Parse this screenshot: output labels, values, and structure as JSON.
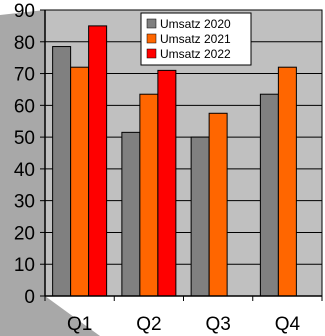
{
  "chart_data": {
    "type": "bar",
    "categories": [
      "Q1",
      "Q2",
      "Q3",
      "Q4"
    ],
    "series": [
      {
        "name": "Umsatz 2020",
        "values": [
          78.5,
          51.5,
          50,
          63.5
        ],
        "color": "#808080"
      },
      {
        "name": "Umsatz 2021",
        "values": [
          72,
          63.5,
          57.5,
          72
        ],
        "color": "#ff6600"
      },
      {
        "name": "Umsatz 2022",
        "values": [
          85,
          71,
          null,
          null
        ],
        "color": "#ff0000"
      }
    ],
    "title": "",
    "xlabel": "",
    "ylabel": "",
    "ylim": [
      0,
      90
    ],
    "yticks": [
      "0",
      "10",
      "20",
      "30",
      "40",
      "50",
      "60",
      "70",
      "80",
      "90"
    ],
    "grid": true,
    "legend_position": "top-right",
    "plot_background": "#c0c0c0",
    "side_wall_color": "#a8a8a8"
  }
}
